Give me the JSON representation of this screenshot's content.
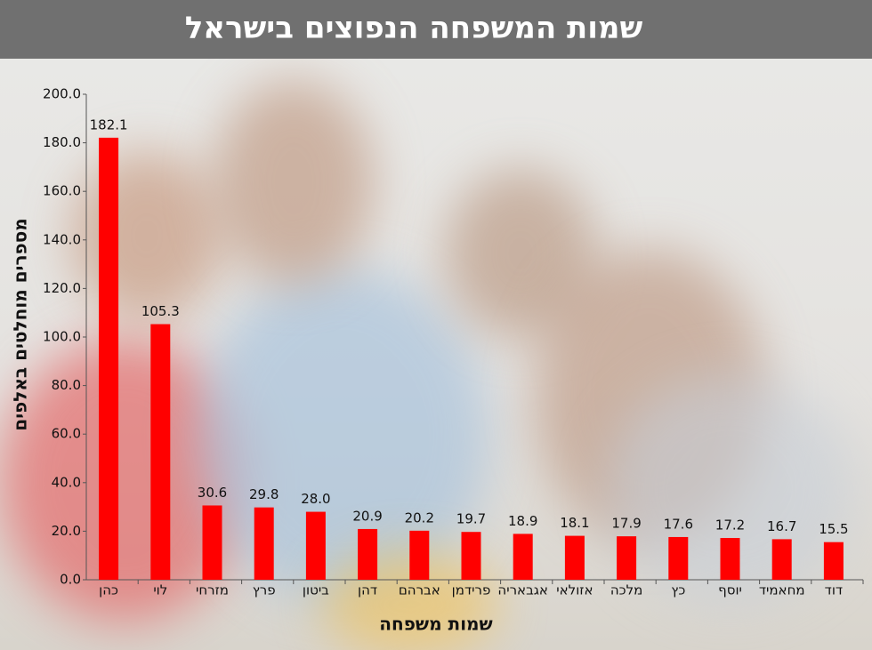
{
  "chart_data": {
    "type": "bar",
    "title": "שמות המשפחה הנפוצים בישראל",
    "x_label": "שמות משפחה",
    "y_label": "מספרים מוחלטים באלפים",
    "categories": [
      "כהן",
      "לוי",
      "מזרחי",
      "פרץ",
      "ביטון",
      "דהן",
      "אברהם",
      "פרידמן",
      "אגבאריה",
      "אזולאי",
      "מלכה",
      "כץ",
      "יוסף",
      "מחאמיד",
      "דוד"
    ],
    "values": [
      182.1,
      105.3,
      30.6,
      29.8,
      28.0,
      20.9,
      20.2,
      19.7,
      18.9,
      18.1,
      17.9,
      17.6,
      17.2,
      16.7,
      15.5
    ],
    "value_labels": [
      "182.1",
      "105.3",
      "30.6",
      "29.8",
      "28.0",
      "20.9",
      "20.2",
      "19.7",
      "18.9",
      "18.1",
      "17.9",
      "17.6",
      "17.2",
      "16.7",
      "15.5"
    ],
    "color": "#ff0000",
    "ylim": [
      0,
      200
    ],
    "yticks": [
      {
        "value": 0,
        "label": "0.0"
      },
      {
        "value": 20,
        "label": "20.0"
      },
      {
        "value": 40,
        "label": "40.0"
      },
      {
        "value": 60,
        "label": "60.0"
      },
      {
        "value": 80,
        "label": "80.0"
      },
      {
        "value": 100,
        "label": "100.0"
      },
      {
        "value": 120,
        "label": "120.0"
      },
      {
        "value": 140,
        "label": "140.0"
      },
      {
        "value": 160,
        "label": "160.0"
      },
      {
        "value": 180,
        "label": "180.0"
      },
      {
        "value": 200,
        "label": "200.0"
      }
    ],
    "grid": false
  }
}
